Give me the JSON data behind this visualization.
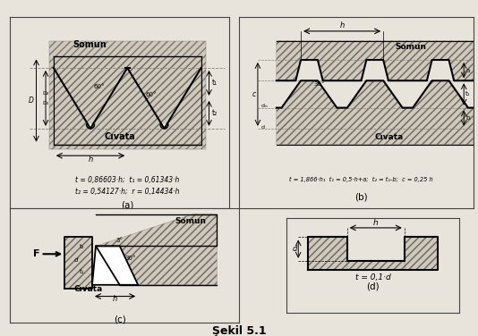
{
  "title": "Şekil 5.1",
  "bg_color": "#e8e4dc",
  "hatch_color": "#888888",
  "line_color": "#000000",
  "label_a": "(a)",
  "label_b": "(b)",
  "label_c": "(c)",
  "label_d": "(d)",
  "formula_a1": "t = 0,86603·h;  t₁ = 0,61343·h",
  "formula_a2": "t₂ = 0,54127·h;  r = 0,14434·h",
  "formula_b": "t = 1,866·h₁  t₁ = 0,5·h+a;  t₂ = t₁-b;  c = 0,25 h",
  "formula_d": "t = 0,1·d",
  "somun": "Somun",
  "civata": "Cıvata",
  "arrow_f": "F"
}
